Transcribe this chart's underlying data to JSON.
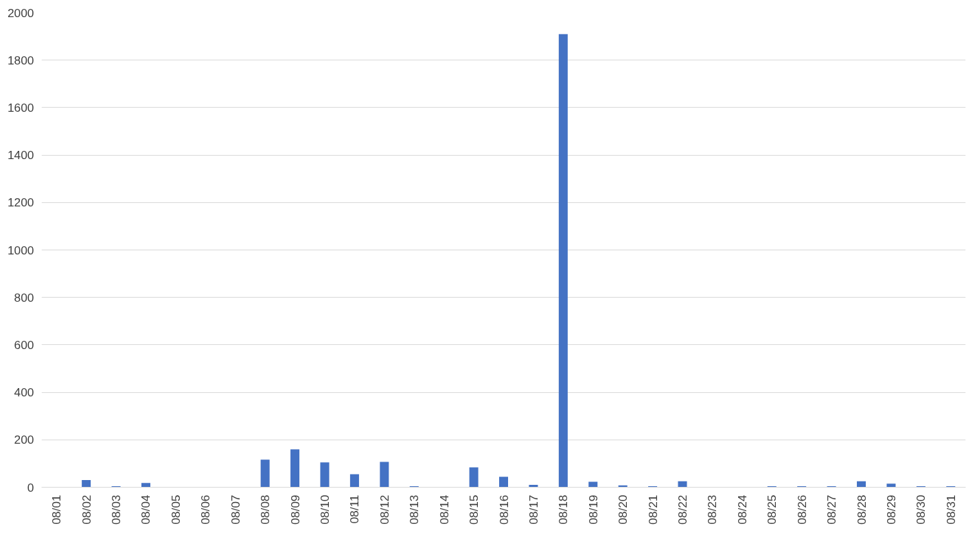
{
  "chart_data": {
    "type": "bar",
    "categories": [
      "08/01",
      "08/02",
      "08/03",
      "08/04",
      "08/05",
      "08/06",
      "08/07",
      "08/08",
      "08/09",
      "08/10",
      "08/11",
      "08/12",
      "08/13",
      "08/14",
      "08/15",
      "08/16",
      "08/17",
      "08/18",
      "08/19",
      "08/20",
      "08/21",
      "08/22",
      "08/23",
      "08/24",
      "08/25",
      "08/26",
      "08/27",
      "08/28",
      "08/29",
      "08/30",
      "08/31"
    ],
    "values": [
      0,
      30,
      4,
      18,
      0,
      0,
      0,
      116,
      160,
      105,
      55,
      107,
      4,
      0,
      84,
      44,
      10,
      1910,
      23,
      8,
      4,
      25,
      0,
      0,
      4,
      4,
      4,
      25,
      15,
      4,
      4
    ],
    "color": "#4472c4",
    "ylim": [
      0,
      2000
    ],
    "yticks": [
      0,
      200,
      400,
      600,
      800,
      1000,
      1200,
      1400,
      1600,
      1800,
      2000
    ],
    "grid": "y"
  }
}
